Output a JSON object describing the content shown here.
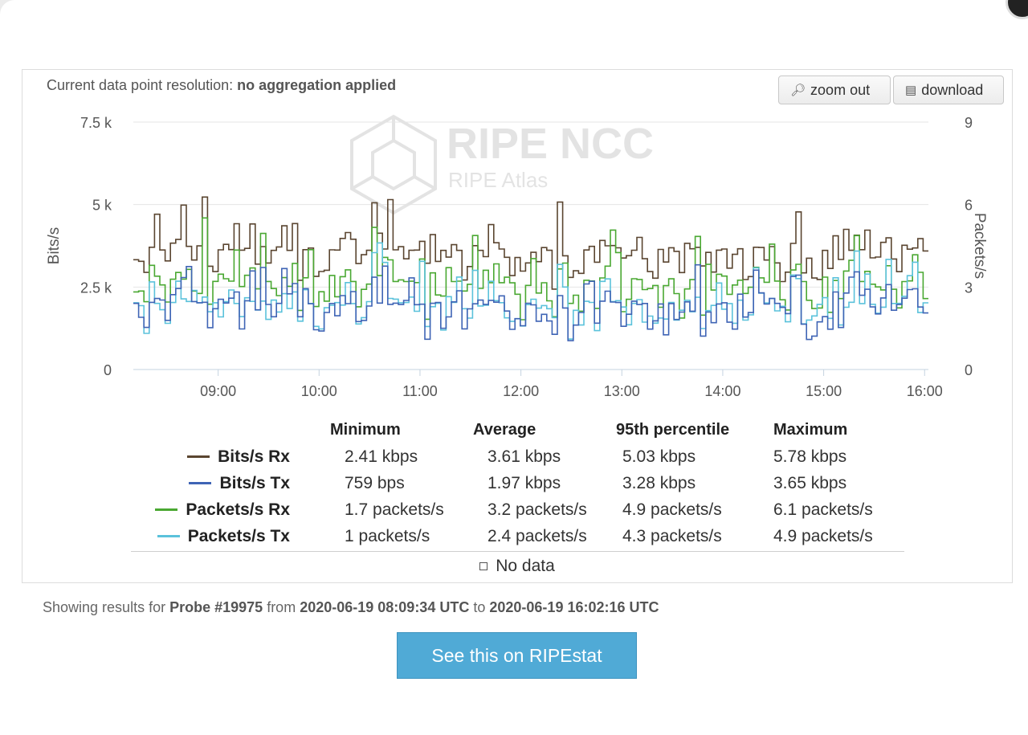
{
  "resolution": {
    "label": "Current data point resolution:",
    "value": "no aggregation applied"
  },
  "toolbar": {
    "zoom_out_label": "zoom out",
    "download_label": "download"
  },
  "watermark": {
    "title": "RIPE NCC",
    "subtitle": "RIPE Atlas"
  },
  "chart_data": {
    "type": "line",
    "step": true,
    "x_ticks": [
      "09:00",
      "10:00",
      "11:00",
      "12:00",
      "13:00",
      "14:00",
      "15:00",
      "16:00"
    ],
    "x_range": [
      "08:09:34",
      "16:02:16"
    ],
    "y_left": {
      "label": "Bits/s",
      "ticks": [
        "0",
        "2.5 k",
        "5 k",
        "7.5 k"
      ],
      "range": [
        0,
        7500
      ]
    },
    "y_right": {
      "label": "Packets/s",
      "ticks": [
        "0",
        "3",
        "6",
        "9"
      ],
      "range": [
        0,
        9
      ]
    },
    "grid": true,
    "series": [
      {
        "name": "Bits/s Rx",
        "axis": "left",
        "color": "#5a4530",
        "min": 2410,
        "avg": 3610,
        "max": 5780
      },
      {
        "name": "Bits/s Tx",
        "axis": "left",
        "color": "#3f64b5",
        "min": 759,
        "avg": 1970,
        "max": 3650
      },
      {
        "name": "Packets/s Rx",
        "axis": "right",
        "color": "#4aa832",
        "min": 1.7,
        "avg": 3.2,
        "max": 6.1
      },
      {
        "name": "Packets/s Tx",
        "axis": "right",
        "color": "#5bc2db",
        "min": 1,
        "avg": 2.4,
        "max": 4.9
      }
    ]
  },
  "stats": {
    "headers": [
      "Minimum",
      "Average",
      "95th percentile",
      "Maximum"
    ],
    "rows": [
      {
        "name": "Bits/s Rx",
        "color": "#5a4530",
        "values": [
          "2.41 kbps",
          "3.61 kbps",
          "5.03 kbps",
          "5.78 kbps"
        ]
      },
      {
        "name": "Bits/s Tx",
        "color": "#3f64b5",
        "values": [
          "759 bps",
          "1.97 kbps",
          "3.28 kbps",
          "3.65 kbps"
        ]
      },
      {
        "name": "Packets/s Rx",
        "color": "#4aa832",
        "values": [
          "1.7 packets/s",
          "3.2 packets/s",
          "4.9 packets/s",
          "6.1 packets/s"
        ]
      },
      {
        "name": "Packets/s Tx",
        "color": "#5bc2db",
        "values": [
          "1 packets/s",
          "2.4 packets/s",
          "4.3 packets/s",
          "4.9 packets/s"
        ]
      }
    ]
  },
  "nodata_label": "No data",
  "showing": {
    "prefix": "Showing results for",
    "probe": "Probe #19975",
    "from_word": "from",
    "start": "2020-06-19 08:09:34 UTC",
    "to_word": "to",
    "end": "2020-06-19 16:02:16 UTC"
  },
  "ripestat_button": "See this on RIPEstat"
}
